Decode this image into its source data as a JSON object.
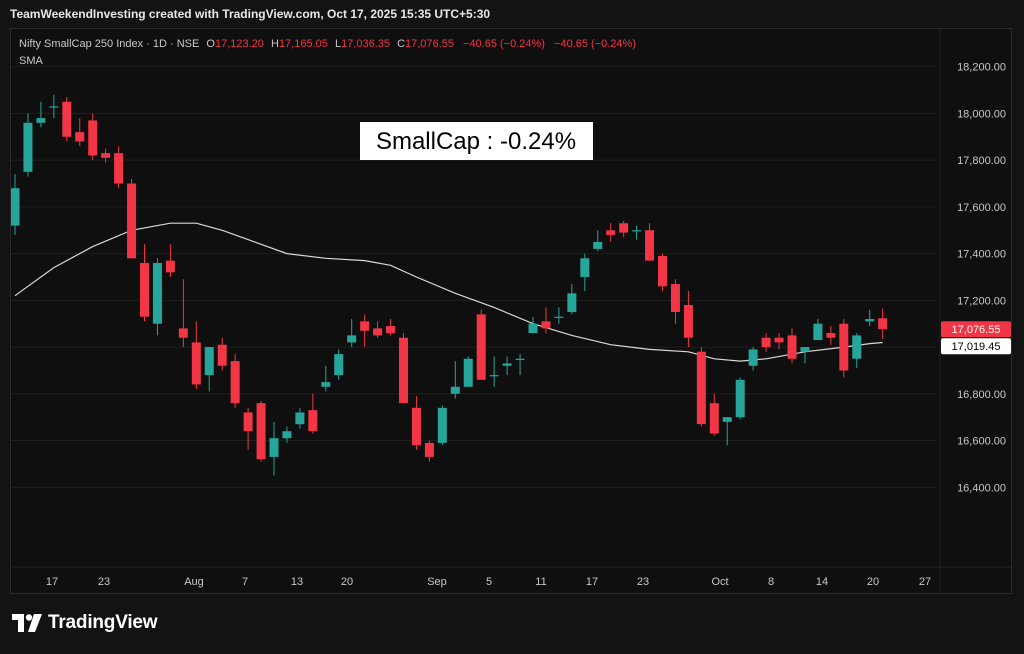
{
  "header": {
    "attribution": "TeamWeekendInvesting created with TradingView.com, Oct 17, 2025 15:35 UTC+5:30"
  },
  "legend": {
    "symbol": "Nifty SmallCap 250 Index · 1D · NSE",
    "open_label": "O",
    "open_value": "17,123.20",
    "high_label": "H",
    "high_value": "17,165.05",
    "low_label": "L",
    "low_value": "17,036.35",
    "close_label": "C",
    "close_value": "17,076.55",
    "change1": "−40.65 (−0.24%)",
    "change2": "−40.65 (−0.24%)",
    "indicator": "SMA"
  },
  "annotation": "SmallCap : -0.24%",
  "footer": {
    "brand": "TradingView",
    "logo_icon": "tradingview-logo-icon"
  },
  "colors": {
    "up": "#26a69a",
    "down": "#f23645",
    "sma": "#d9d9d9",
    "background": "#131313",
    "grid": "#1e1e1e"
  },
  "chart_data": {
    "type": "candlestick",
    "title": "",
    "x_tick_labels": [
      "17",
      "23",
      "Aug",
      "7",
      "13",
      "20",
      "Sep",
      "5",
      "11",
      "17",
      "23",
      "Oct",
      "8",
      "14",
      "20",
      "27"
    ],
    "y_ticks": [
      16400,
      16600,
      16800,
      17000,
      17200,
      17400,
      17600,
      17800,
      18000,
      18200
    ],
    "y_tick_labels": [
      "16,400.00",
      "16,600.00",
      "16,800.00",
      "17,000.00",
      "17,200.00",
      "17,400.00",
      "17,600.00",
      "17,800.00",
      "18,000.00",
      "18,200.00"
    ],
    "ylim": [
      16200,
      18280
    ],
    "last_price_label": "17,076.55",
    "sma_label": "17,019.45",
    "candles": [
      {
        "d": "Jul 14",
        "o": 17520,
        "h": 17740,
        "l": 17480,
        "c": 17680
      },
      {
        "d": "Jul 15",
        "o": 17750,
        "h": 18000,
        "l": 17730,
        "c": 17960
      },
      {
        "d": "Jul 16",
        "o": 17960,
        "h": 18050,
        "l": 17940,
        "c": 17980
      },
      {
        "d": "Jul 17",
        "o": 18030,
        "h": 18080,
        "l": 17980,
        "c": 18030
      },
      {
        "d": "Jul 18",
        "o": 18050,
        "h": 18070,
        "l": 17880,
        "c": 17900
      },
      {
        "d": "Jul 21",
        "o": 17920,
        "h": 17980,
        "l": 17860,
        "c": 17880
      },
      {
        "d": "Jul 22",
        "o": 17970,
        "h": 18000,
        "l": 17800,
        "c": 17820
      },
      {
        "d": "Jul 23",
        "o": 17830,
        "h": 17850,
        "l": 17790,
        "c": 17810
      },
      {
        "d": "Jul 24",
        "o": 17830,
        "h": 17860,
        "l": 17680,
        "c": 17700
      },
      {
        "d": "Jul 25",
        "o": 17700,
        "h": 17720,
        "l": 17380,
        "c": 17380
      },
      {
        "d": "Jul 28",
        "o": 17360,
        "h": 17440,
        "l": 17110,
        "c": 17130
      },
      {
        "d": "Jul 29",
        "o": 17100,
        "h": 17380,
        "l": 17050,
        "c": 17360
      },
      {
        "d": "Jul 30",
        "o": 17370,
        "h": 17440,
        "l": 17300,
        "c": 17320
      },
      {
        "d": "Jul 31",
        "o": 17080,
        "h": 17290,
        "l": 17000,
        "c": 17040
      },
      {
        "d": "Aug 1",
        "o": 17020,
        "h": 17110,
        "l": 16820,
        "c": 16840
      },
      {
        "d": "Aug 4",
        "o": 16880,
        "h": 17000,
        "l": 16810,
        "c": 17000
      },
      {
        "d": "Aug 5",
        "o": 17010,
        "h": 17040,
        "l": 16900,
        "c": 16920
      },
      {
        "d": "Aug 6",
        "o": 16940,
        "h": 16970,
        "l": 16740,
        "c": 16760
      },
      {
        "d": "Aug 7",
        "o": 16720,
        "h": 16740,
        "l": 16560,
        "c": 16640
      },
      {
        "d": "Aug 8",
        "o": 16760,
        "h": 16770,
        "l": 16510,
        "c": 16520
      },
      {
        "d": "Aug 11",
        "o": 16530,
        "h": 16680,
        "l": 16450,
        "c": 16610
      },
      {
        "d": "Aug 12",
        "o": 16610,
        "h": 16660,
        "l": 16590,
        "c": 16640
      },
      {
        "d": "Aug 13",
        "o": 16670,
        "h": 16740,
        "l": 16650,
        "c": 16720
      },
      {
        "d": "Aug 14",
        "o": 16730,
        "h": 16800,
        "l": 16630,
        "c": 16640
      },
      {
        "d": "Aug 18",
        "o": 16830,
        "h": 16920,
        "l": 16810,
        "c": 16850
      },
      {
        "d": "Aug 19",
        "o": 16880,
        "h": 16990,
        "l": 16860,
        "c": 16970
      },
      {
        "d": "Aug 20",
        "o": 17020,
        "h": 17120,
        "l": 17000,
        "c": 17050
      },
      {
        "d": "Aug 21",
        "o": 17110,
        "h": 17140,
        "l": 17000,
        "c": 17070
      },
      {
        "d": "Aug 22",
        "o": 17080,
        "h": 17110,
        "l": 17040,
        "c": 17050
      },
      {
        "d": "Aug 25",
        "o": 17090,
        "h": 17120,
        "l": 17050,
        "c": 17060
      },
      {
        "d": "Aug 26",
        "o": 17040,
        "h": 17060,
        "l": 16760,
        "c": 16760
      },
      {
        "d": "Aug 28",
        "o": 16740,
        "h": 16790,
        "l": 16560,
        "c": 16580
      },
      {
        "d": "Aug 29",
        "o": 16590,
        "h": 16600,
        "l": 16510,
        "c": 16530
      },
      {
        "d": "Sep 1",
        "o": 16590,
        "h": 16750,
        "l": 16580,
        "c": 16740
      },
      {
        "d": "Sep 2",
        "o": 16800,
        "h": 16940,
        "l": 16780,
        "c": 16830
      },
      {
        "d": "Sep 3",
        "o": 16830,
        "h": 16960,
        "l": 16840,
        "c": 16950
      },
      {
        "d": "Sep 4",
        "o": 17140,
        "h": 17160,
        "l": 16860,
        "c": 16860
      },
      {
        "d": "Sep 5",
        "o": 16880,
        "h": 16960,
        "l": 16830,
        "c": 16880
      },
      {
        "d": "Sep 8",
        "o": 16920,
        "h": 16960,
        "l": 16880,
        "c": 16930
      },
      {
        "d": "Sep 9",
        "o": 16950,
        "h": 16970,
        "l": 16880,
        "c": 16950
      },
      {
        "d": "Sep 10",
        "o": 17060,
        "h": 17130,
        "l": 17060,
        "c": 17100
      },
      {
        "d": "Sep 11",
        "o": 17110,
        "h": 17170,
        "l": 17060,
        "c": 17080
      },
      {
        "d": "Sep 12",
        "o": 17130,
        "h": 17170,
        "l": 17100,
        "c": 17130
      },
      {
        "d": "Sep 15",
        "o": 17150,
        "h": 17270,
        "l": 17140,
        "c": 17230
      },
      {
        "d": "Sep 16",
        "o": 17300,
        "h": 17400,
        "l": 17240,
        "c": 17380
      },
      {
        "d": "Sep 17",
        "o": 17420,
        "h": 17500,
        "l": 17410,
        "c": 17450
      },
      {
        "d": "Sep 18",
        "o": 17500,
        "h": 17530,
        "l": 17450,
        "c": 17480
      },
      {
        "d": "Sep 19",
        "o": 17530,
        "h": 17540,
        "l": 17470,
        "c": 17490
      },
      {
        "d": "Sep 22",
        "o": 17500,
        "h": 17520,
        "l": 17460,
        "c": 17500
      },
      {
        "d": "Sep 23",
        "o": 17500,
        "h": 17530,
        "l": 17380,
        "c": 17370
      },
      {
        "d": "Sep 24",
        "o": 17390,
        "h": 17400,
        "l": 17240,
        "c": 17260
      },
      {
        "d": "Sep 25",
        "o": 17270,
        "h": 17290,
        "l": 17100,
        "c": 17150
      },
      {
        "d": "Sep 26",
        "o": 17180,
        "h": 17240,
        "l": 17000,
        "c": 17040
      },
      {
        "d": "Sep 29",
        "o": 16980,
        "h": 17000,
        "l": 16660,
        "c": 16670
      },
      {
        "d": "Sep 30",
        "o": 16760,
        "h": 16800,
        "l": 16620,
        "c": 16630
      },
      {
        "d": "Oct 1",
        "o": 16680,
        "h": 16700,
        "l": 16580,
        "c": 16700
      },
      {
        "d": "Oct 3",
        "o": 16700,
        "h": 16870,
        "l": 16690,
        "c": 16860
      },
      {
        "d": "Oct 6",
        "o": 16920,
        "h": 17000,
        "l": 16900,
        "c": 16990
      },
      {
        "d": "Oct 7",
        "o": 17040,
        "h": 17060,
        "l": 16980,
        "c": 17000
      },
      {
        "d": "Oct 8",
        "o": 17040,
        "h": 17060,
        "l": 16990,
        "c": 17020
      },
      {
        "d": "Oct 9",
        "o": 17050,
        "h": 17080,
        "l": 16930,
        "c": 16950
      },
      {
        "d": "Oct 10",
        "o": 16980,
        "h": 17000,
        "l": 16930,
        "c": 17000
      },
      {
        "d": "Oct 13",
        "o": 17030,
        "h": 17120,
        "l": 17030,
        "c": 17100
      },
      {
        "d": "Oct 14",
        "o": 17060,
        "h": 17090,
        "l": 17010,
        "c": 17040
      },
      {
        "d": "Oct 15",
        "o": 17100,
        "h": 17120,
        "l": 16870,
        "c": 16900
      },
      {
        "d": "Oct 16",
        "o": 16950,
        "h": 17060,
        "l": 16910,
        "c": 17050
      },
      {
        "d": "Oct 17a",
        "o": 17110,
        "h": 17160,
        "l": 17090,
        "c": 17120
      },
      {
        "d": "Oct 17",
        "o": 17123.2,
        "h": 17165.05,
        "l": 17036.35,
        "c": 17076.55
      }
    ],
    "sma": [
      {
        "i": 0,
        "v": 17220
      },
      {
        "i": 3,
        "v": 17340
      },
      {
        "i": 6,
        "v": 17430
      },
      {
        "i": 9,
        "v": 17500
      },
      {
        "i": 12,
        "v": 17530
      },
      {
        "i": 14,
        "v": 17530
      },
      {
        "i": 16,
        "v": 17500
      },
      {
        "i": 18,
        "v": 17460
      },
      {
        "i": 21,
        "v": 17400
      },
      {
        "i": 24,
        "v": 17380
      },
      {
        "i": 27,
        "v": 17370
      },
      {
        "i": 29,
        "v": 17350
      },
      {
        "i": 31,
        "v": 17300
      },
      {
        "i": 34,
        "v": 17230
      },
      {
        "i": 37,
        "v": 17170
      },
      {
        "i": 40,
        "v": 17100
      },
      {
        "i": 43,
        "v": 17050
      },
      {
        "i": 46,
        "v": 17010
      },
      {
        "i": 49,
        "v": 16990
      },
      {
        "i": 52,
        "v": 16980
      },
      {
        "i": 54,
        "v": 16950
      },
      {
        "i": 56,
        "v": 16940
      },
      {
        "i": 58,
        "v": 16950
      },
      {
        "i": 61,
        "v": 16980
      },
      {
        "i": 64,
        "v": 17000
      },
      {
        "i": 66,
        "v": 17015
      },
      {
        "i": 67,
        "v": 17019.45
      }
    ]
  }
}
